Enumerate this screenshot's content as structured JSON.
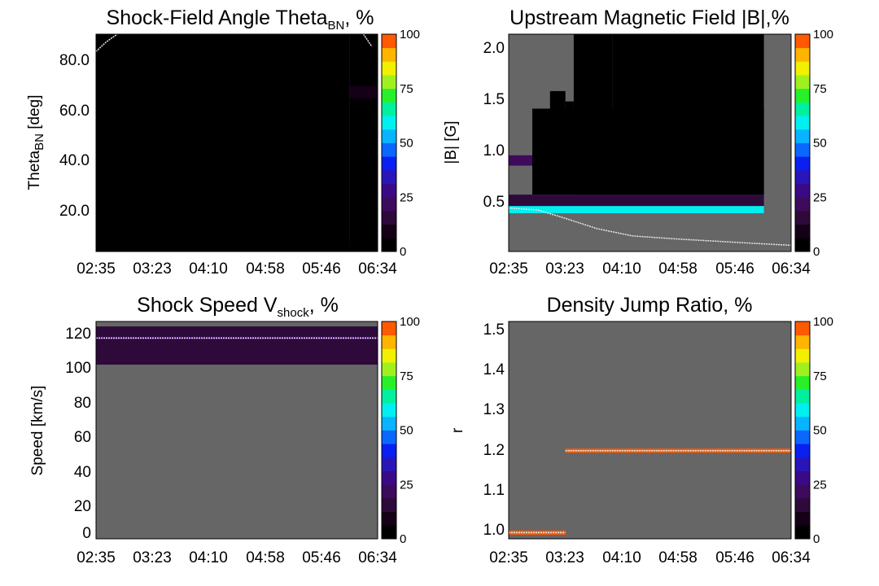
{
  "colors": {
    "background": "#ffffff",
    "no_data": "#666666",
    "frame": "#000000",
    "model_curve": "#e8e8e8",
    "colorscale": [
      "#000000",
      "#150018",
      "#2d0a3a",
      "#3e0a5c",
      "#3a0a86",
      "#2a16b8",
      "#0a20f0",
      "#0a68ff",
      "#08b4ff",
      "#00f0f0",
      "#00f0a0",
      "#28f028",
      "#a0f020",
      "#f0f000",
      "#ffb400",
      "#ff5a00"
    ]
  },
  "time_ticks": [
    "02:35",
    "03:23",
    "04:10",
    "04:58",
    "05:46",
    "06:34"
  ],
  "colorbar": {
    "ticks": [
      "0",
      "25",
      "50",
      "75",
      "100"
    ],
    "range": [
      0,
      100
    ]
  },
  "panels": [
    {
      "id": "theta",
      "title": {
        "pre": "Shock-Field Angle Theta",
        "sub": "BN",
        "post": ", %"
      },
      "ylabel": {
        "pre": "Theta",
        "sub": "BN",
        "post": " [deg]"
      },
      "yticks": [
        "20.0",
        "40.0",
        "60.0",
        "80.0"
      ]
    },
    {
      "id": "bfield",
      "title": {
        "pre": "Upstream Magnetic Field |B|,%",
        "sub": "",
        "post": ""
      },
      "ylabel": {
        "pre": "|B| [G]",
        "sub": "",
        "post": ""
      },
      "yticks": [
        "0.5",
        "1.0",
        "1.5",
        "2.0"
      ]
    },
    {
      "id": "speed",
      "title": {
        "pre": "Shock Speed V",
        "sub": "shock",
        "post": ", %"
      },
      "ylabel": {
        "pre": "Speed [km/s]",
        "sub": "",
        "post": ""
      },
      "yticks": [
        "0",
        "20",
        "40",
        "60",
        "80",
        "100",
        "120"
      ]
    },
    {
      "id": "density",
      "title": {
        "pre": "Density Jump Ratio, %",
        "sub": "",
        "post": ""
      },
      "ylabel": {
        "pre": "r",
        "sub": "",
        "post": ""
      },
      "yticks": [
        "1.0",
        "1.1",
        "1.2",
        "1.3",
        "1.4",
        "1.5"
      ]
    }
  ],
  "chart_data": [
    {
      "type": "heatmap",
      "title": "Shock-Field Angle Theta_BN, %",
      "xlabel": "",
      "ylabel": "Theta_BN [deg]",
      "x_ticks": [
        "02:35",
        "03:23",
        "04:10",
        "04:58",
        "05:46",
        "06:34"
      ],
      "y_ticks": [
        20.0,
        40.0,
        60.0,
        80.0
      ],
      "ylim": [
        3,
        91
      ],
      "color_range": [
        0,
        100
      ],
      "regions": [
        {
          "t_start": "02:35",
          "t_end": "06:10",
          "y_start": 3,
          "y_end": 91,
          "value": 6
        },
        {
          "t_start": "02:35",
          "t_end": "06:10",
          "y_start": 3,
          "y_end": 7,
          "value": 4
        },
        {
          "t_start": "06:10",
          "t_end": "06:34",
          "y_start": 3,
          "y_end": 91,
          "value": 4
        },
        {
          "t_start": "06:10",
          "t_end": "06:34",
          "y_start": 65,
          "y_end": 70,
          "value": 8
        }
      ],
      "model_curve": [
        [
          "02:35",
          84.0
        ],
        [
          "02:44",
          88.0
        ],
        [
          "02:53",
          91.0
        ]
      ],
      "model_curve_late": [
        [
          "06:22",
          91.0
        ],
        [
          "06:29",
          86.0
        ]
      ]
    },
    {
      "type": "heatmap",
      "title": "Upstream Magnetic Field |B|,%",
      "xlabel": "",
      "ylabel": "|B| [G]",
      "x_ticks": [
        "02:35",
        "03:23",
        "04:10",
        "04:58",
        "05:46",
        "06:34"
      ],
      "y_ticks": [
        0.5,
        1.0,
        1.5,
        2.0
      ],
      "ylim": [
        0.0,
        2.1
      ],
      "color_range": [
        0,
        100
      ],
      "regions": [
        {
          "t_start": "02:35",
          "t_end": "06:11",
          "y_start": 0.37,
          "y_end": 0.44,
          "value": 58
        },
        {
          "t_start": "02:35",
          "t_end": "06:11",
          "y_start": 0.44,
          "y_end": 0.55,
          "value": 14
        },
        {
          "t_start": "02:35",
          "t_end": "03:10",
          "y_start": 0.83,
          "y_end": 0.93,
          "value": 22
        },
        {
          "t_start": "02:55",
          "t_end": "06:11",
          "y_start": 0.55,
          "y_end": 1.38,
          "value": 3
        },
        {
          "t_start": "03:10",
          "t_end": "03:23",
          "y_start": 0.55,
          "y_end": 1.55,
          "value": 3
        },
        {
          "t_start": "03:23",
          "t_end": "03:30",
          "y_start": 0.55,
          "y_end": 1.45,
          "value": 3
        },
        {
          "t_start": "03:30",
          "t_end": "04:03",
          "y_start": 0.55,
          "y_end": 2.1,
          "value": 3
        },
        {
          "t_start": "04:03",
          "t_end": "06:11",
          "y_start": 0.55,
          "y_end": 2.1,
          "value": 2
        }
      ],
      "model_curve": [
        [
          "02:35",
          0.42
        ],
        [
          "03:00",
          0.4
        ],
        [
          "03:23",
          0.32
        ],
        [
          "03:50",
          0.22
        ],
        [
          "04:20",
          0.15
        ],
        [
          "04:58",
          0.12
        ],
        [
          "05:30",
          0.1
        ],
        [
          "06:00",
          0.08
        ],
        [
          "06:34",
          0.06
        ]
      ]
    },
    {
      "type": "heatmap",
      "title": "Shock Speed V_shock, %",
      "xlabel": "",
      "ylabel": "Speed [km/s]",
      "x_ticks": [
        "02:35",
        "03:23",
        "04:10",
        "04:58",
        "05:46",
        "06:34"
      ],
      "y_ticks": [
        0,
        20,
        40,
        60,
        80,
        100,
        120
      ],
      "ylim": [
        -5,
        126
      ],
      "color_range": [
        0,
        100
      ],
      "regions": [
        {
          "t_start": "02:35",
          "t_end": "06:34",
          "y_start": 100,
          "y_end": 123,
          "value": 14
        },
        {
          "t_start": "02:35",
          "t_end": "06:34",
          "y_start": 115,
          "y_end": 117,
          "value": 20
        }
      ],
      "model_curve": [
        [
          "02:35",
          116
        ],
        [
          "06:34",
          116
        ]
      ]
    },
    {
      "type": "heatmap",
      "title": "Density Jump Ratio, %",
      "xlabel": "",
      "ylabel": "r",
      "x_ticks": [
        "02:35",
        "03:23",
        "04:10",
        "04:58",
        "05:46",
        "06:34"
      ],
      "y_ticks": [
        1.0,
        1.1,
        1.2,
        1.3,
        1.4,
        1.5
      ],
      "ylim": [
        0.98,
        1.51
      ],
      "color_range": [
        0,
        100
      ],
      "regions": [
        {
          "t_start": "02:35",
          "t_end": "03:23",
          "y_start": 0.99,
          "y_end": 1.0,
          "value": 100
        },
        {
          "t_start": "03:23",
          "t_end": "06:34",
          "y_start": 1.19,
          "y_end": 1.2,
          "value": 100
        }
      ],
      "model_curve": [
        [
          "02:35",
          0.995
        ],
        [
          "03:23",
          0.995
        ]
      ],
      "model_curve_late": [
        [
          "03:23",
          1.195
        ],
        [
          "06:34",
          1.195
        ]
      ]
    }
  ]
}
